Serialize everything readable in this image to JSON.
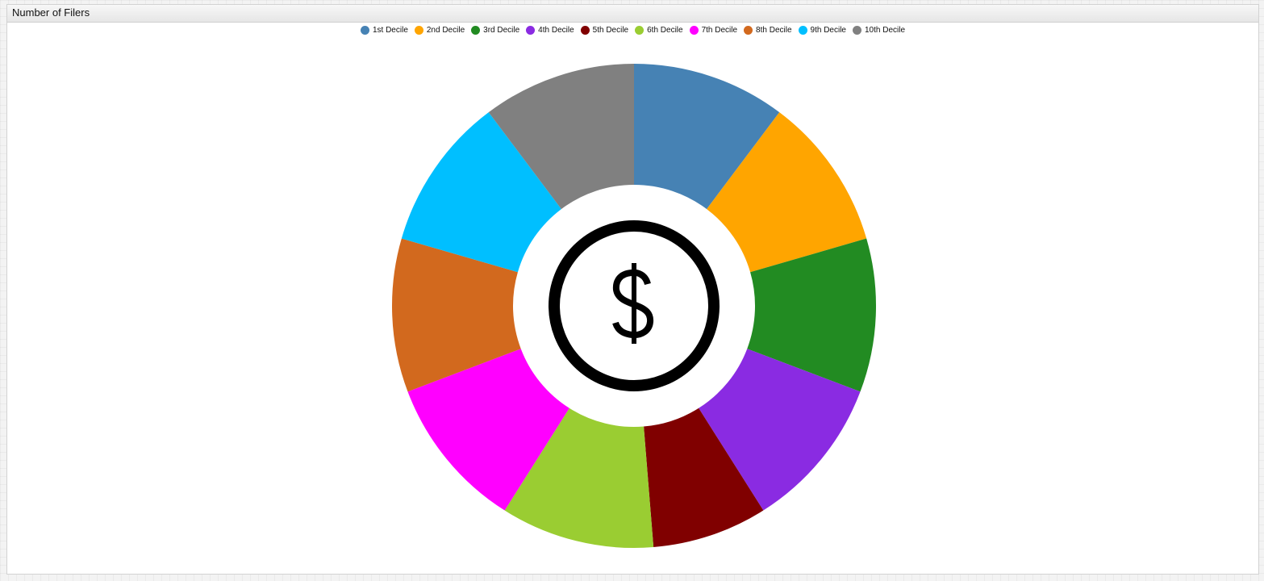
{
  "panel": {
    "title": "Number of Filers"
  },
  "chart_data": {
    "type": "pie",
    "variant": "donut",
    "title": "Number of Filers",
    "center_icon": "dollar-coin-icon",
    "legend_position": "top",
    "series": [
      {
        "name": "1st Decile",
        "value": 10.0,
        "color": "#4682B4"
      },
      {
        "name": "2nd Decile",
        "value": 10.0,
        "color": "#FFA500"
      },
      {
        "name": "3rd Decile",
        "value": 10.0,
        "color": "#228B22"
      },
      {
        "name": "4th Decile",
        "value": 10.0,
        "color": "#8A2BE2"
      },
      {
        "name": "5th Decile",
        "value": 7.5,
        "color": "#800000"
      },
      {
        "name": "6th Decile",
        "value": 10.0,
        "color": "#9ACD32"
      },
      {
        "name": "7th Decile",
        "value": 10.0,
        "color": "#FF00FF"
      },
      {
        "name": "8th Decile",
        "value": 10.0,
        "color": "#D2691E"
      },
      {
        "name": "9th Decile",
        "value": 10.0,
        "color": "#00BFFF"
      },
      {
        "name": "10th Decile",
        "value": 10.0,
        "color": "#808080"
      }
    ]
  }
}
